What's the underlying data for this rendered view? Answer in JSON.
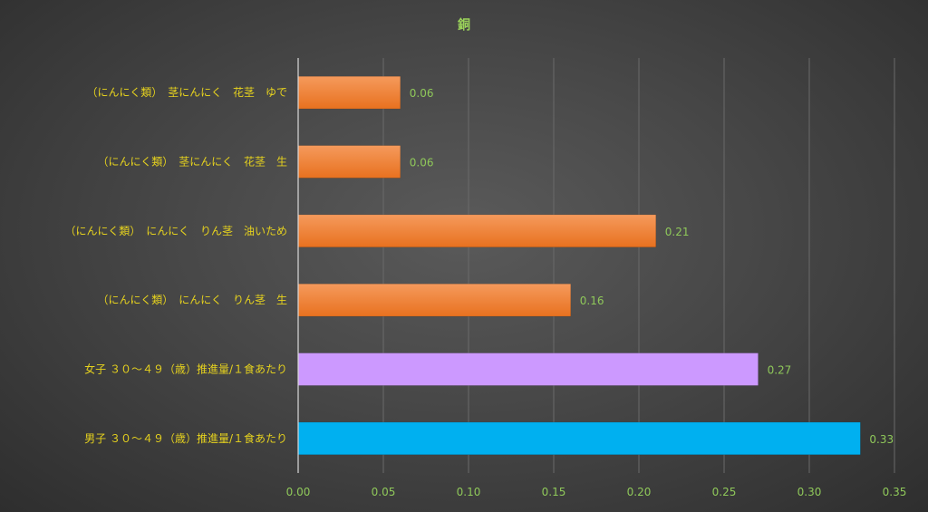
{
  "chart_data": {
    "type": "bar",
    "orientation": "horizontal",
    "title": "銅",
    "categories": [
      "（にんにく類）　茎にんにく　花茎　ゆで",
      "（にんにく類）　茎にんにく　花茎　生",
      "（にんにく類）　にんにく　りん茎　油いため",
      "（にんにく類）　にんにく　りん茎　生",
      "女子 ３０～４９（歳）推進量/１食あたり",
      "男子 ３０～４９（歳）推進量/１食あたり"
    ],
    "values": [
      0.06,
      0.06,
      0.21,
      0.16,
      0.27,
      0.33
    ],
    "value_labels": [
      "0.06",
      "0.06",
      "0.21",
      "0.16",
      "0.27",
      "0.33"
    ],
    "bar_colors": [
      "#ed7d31",
      "#ed7d31",
      "#ed7d31",
      "#ed7d31",
      "#cc99ff",
      "#00b0f0"
    ],
    "xlim": [
      0,
      0.35
    ],
    "ticks": [
      "0.00",
      "0.05",
      "0.10",
      "0.15",
      "0.20",
      "0.25",
      "0.30",
      "0.35"
    ],
    "grid": true,
    "legend": "none"
  }
}
